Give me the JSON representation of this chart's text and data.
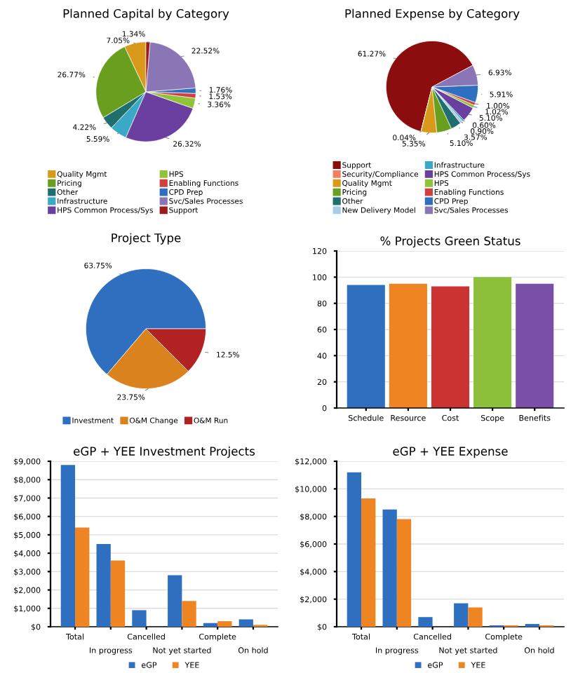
{
  "chart_data": [
    {
      "type": "pie",
      "title": "Planned Capital by Category",
      "legend": "bottom",
      "categories": [
        "Quality Mgmt",
        "Pricing",
        "Other",
        "Infrastructure",
        "HPS Common Process/Sys",
        "HPS",
        "Enabling Functions",
        "CPD Prep",
        "Svc/Sales Processes",
        "Support"
      ],
      "values": [
        7.05,
        26.77,
        4.22,
        5.59,
        26.32,
        3.36,
        1.53,
        1.76,
        22.52,
        1.34
      ],
      "value_labels": [
        "7.05%",
        "26.77%",
        "4.22%",
        "5.59%",
        "26.32%",
        "3.36%",
        "1.53%",
        "1.76%",
        "22.52%",
        "1.34%"
      ],
      "colors": [
        "#d99a1a",
        "#6a9e1f",
        "#1f6f6f",
        "#3aa9c8",
        "#6a3fa0",
        "#8fc43a",
        "#d04040",
        "#2f6fc0",
        "#8a75b5",
        "#9b1b1b"
      ]
    },
    {
      "type": "pie",
      "title": "Planned Expense by Category",
      "legend": "bottom",
      "categories": [
        "Support",
        "Security/Compliance",
        "Quality Mgmt",
        "Pricing",
        "Other",
        "New Delivery Model",
        "Infrastructure",
        "HPS Common Process/Sys",
        "HPS",
        "Enabling Functions",
        "CPD Prep",
        "Svc/Sales Processes"
      ],
      "values": [
        61.27,
        0.04,
        5.35,
        5.1,
        3.57,
        0.9,
        0.6,
        5.1,
        1.02,
        1.0,
        5.91,
        6.93
      ],
      "value_labels": [
        "61.27%",
        "0.04%",
        "5.35%",
        "5.10%",
        "3.57%",
        "0.90%",
        "0.60%",
        "5.10%",
        "1.02%",
        "1.00%",
        "5.91%",
        "6.93%"
      ],
      "colors": [
        "#8b0d0d",
        "#f08060",
        "#d99a1a",
        "#6a9e1f",
        "#1f6f6f",
        "#a9cbe8",
        "#3aa9c8",
        "#6a3fa0",
        "#8fc43a",
        "#d04040",
        "#2f6fc0",
        "#8a75b5"
      ]
    },
    {
      "type": "pie",
      "title": "Project Type",
      "legend": "bottom",
      "categories": [
        "Investment",
        "O&M Change",
        "O&M Run"
      ],
      "values": [
        63.75,
        23.75,
        12.5
      ],
      "value_labels": [
        "63.75%",
        "23.75%",
        "12.5%"
      ],
      "colors": [
        "#2f6fc0",
        "#d9821e",
        "#b22222"
      ]
    },
    {
      "type": "bar",
      "title": "% Projects Green Status",
      "categories": [
        "Schedule",
        "Resource",
        "Cost",
        "Scope",
        "Benefits"
      ],
      "values": [
        94,
        95,
        93,
        100,
        95
      ],
      "colors": [
        "#2f6fc0",
        "#ee8422",
        "#cc3333",
        "#8dc03a",
        "#7a4fa8"
      ],
      "ylim": [
        0,
        120
      ],
      "yticks": [
        0,
        20,
        40,
        60,
        80,
        100,
        120
      ],
      "grid": "y"
    },
    {
      "type": "bar",
      "title": "eGP + YEE Investment Projects",
      "legend": "bottom",
      "categories": [
        "Total",
        "In progress",
        "Cancelled",
        "Not yet started",
        "Complete",
        "On hold"
      ],
      "series": [
        {
          "name": "eGP",
          "color": "#2f6fc0",
          "values": [
            8800,
            4500,
            900,
            2800,
            200,
            400
          ]
        },
        {
          "name": "YEE",
          "color": "#ee8422",
          "values": [
            5400,
            3600,
            0,
            1400,
            300,
            100
          ]
        }
      ],
      "ylim": [
        0,
        9000
      ],
      "yticks": [
        {
          "value": 0,
          "label": "$0"
        },
        {
          "value": 1000,
          "label": "$1,000"
        },
        {
          "value": 2000,
          "label": "$2,000"
        },
        {
          "value": 3000,
          "label": "$3,000"
        },
        {
          "value": 4000,
          "label": "$4,000"
        },
        {
          "value": 5000,
          "label": "$5,000"
        },
        {
          "value": 6000,
          "label": "$6,000"
        },
        {
          "value": 7000,
          "label": "$7,000"
        },
        {
          "value": 8000,
          "label": "$8,000"
        },
        {
          "value": 9000,
          "label": "$9,000"
        }
      ],
      "grid": "y"
    },
    {
      "type": "bar",
      "title": "eGP + YEE Expense",
      "legend": "bottom",
      "categories": [
        "Total",
        "In progress",
        "Cancelled",
        "Not yet started",
        "Complete",
        "On hold"
      ],
      "series": [
        {
          "name": "eGP",
          "color": "#2f6fc0",
          "values": [
            11200,
            8500,
            700,
            1700,
            100,
            200
          ]
        },
        {
          "name": "YEE",
          "color": "#ee8422",
          "values": [
            9300,
            7800,
            0,
            1400,
            100,
            100
          ]
        }
      ],
      "ylim": [
        0,
        12000
      ],
      "yticks": [
        {
          "value": 0,
          "label": "$0"
        },
        {
          "value": 2000,
          "label": "$2,000"
        },
        {
          "value": 4000,
          "label": "$4,000"
        },
        {
          "value": 6000,
          "label": "$6,000"
        },
        {
          "value": 8000,
          "label": "$8,000"
        },
        {
          "value": 10000,
          "label": "$10,000"
        },
        {
          "value": 12000,
          "label": "$12,000"
        }
      ],
      "grid": "y"
    }
  ]
}
